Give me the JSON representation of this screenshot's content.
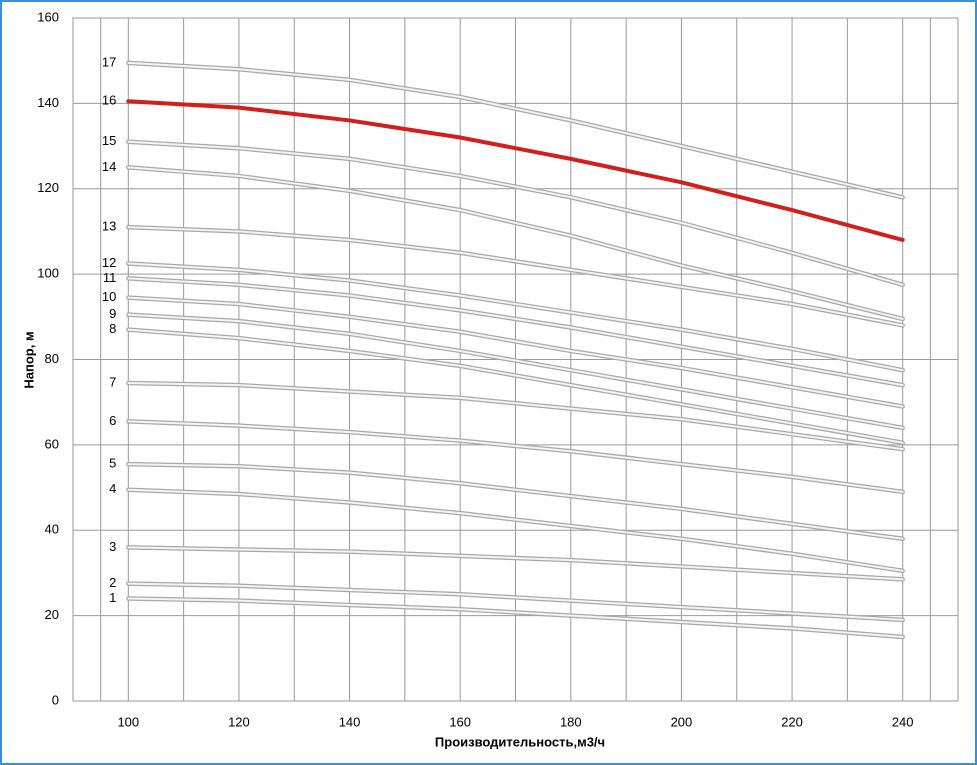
{
  "chart_data": {
    "type": "line",
    "x_label": "Производительность,м3/ч",
    "y_label": "Напор, м",
    "x": [
      100,
      120,
      140,
      160,
      180,
      200,
      220,
      240
    ],
    "xlim": [
      90,
      250
    ],
    "xticks": [
      100,
      120,
      140,
      160,
      180,
      200,
      220,
      240
    ],
    "ylim": [
      0,
      160
    ],
    "yticks": [
      0,
      20,
      40,
      60,
      80,
      100,
      120,
      140,
      160
    ],
    "grid": true,
    "series": [
      {
        "name": "1",
        "color": "#a8a8a8",
        "values": [
          24,
          23.5,
          22.5,
          21.5,
          20,
          18.5,
          17,
          15
        ]
      },
      {
        "name": "2",
        "color": "#a8a8a8",
        "values": [
          27.5,
          27,
          26,
          25,
          23.5,
          22,
          20.5,
          19
        ]
      },
      {
        "name": "3",
        "color": "#a8a8a8",
        "values": [
          36,
          35.5,
          35,
          34,
          33,
          31.5,
          30,
          28.5
        ]
      },
      {
        "name": "4",
        "color": "#a8a8a8",
        "values": [
          49.5,
          48.5,
          46.5,
          44,
          41,
          38,
          34.5,
          30.5
        ]
      },
      {
        "name": "5",
        "color": "#a8a8a8",
        "values": [
          55.5,
          55,
          53.5,
          51,
          48,
          45,
          41.5,
          38
        ]
      },
      {
        "name": "6",
        "color": "#a8a8a8",
        "values": [
          65.5,
          64.5,
          63,
          61,
          58.5,
          55.5,
          52.5,
          49
        ]
      },
      {
        "name": "7",
        "color": "#a8a8a8",
        "values": [
          74.5,
          74,
          72.5,
          71,
          68.5,
          66,
          62.5,
          59
        ]
      },
      {
        "name": "8",
        "color": "#a8a8a8",
        "values": [
          87,
          85,
          82,
          78.5,
          74,
          69.5,
          65,
          60.5
        ]
      },
      {
        "name": "9",
        "color": "#a8a8a8",
        "values": [
          90.5,
          89,
          86,
          82,
          77.5,
          73,
          68.5,
          64
        ]
      },
      {
        "name": "10",
        "color": "#a8a8a8",
        "values": [
          94.5,
          93,
          90,
          86.5,
          82,
          78,
          73.5,
          69
        ]
      },
      {
        "name": "11",
        "color": "#a8a8a8",
        "values": [
          99,
          97.5,
          95,
          91.5,
          87.5,
          83,
          78.5,
          74
        ]
      },
      {
        "name": "12",
        "color": "#a8a8a8",
        "values": [
          102.5,
          101,
          98.5,
          95,
          91,
          87,
          82.5,
          77.5
        ]
      },
      {
        "name": "13",
        "color": "#a8a8a8",
        "values": [
          111,
          110,
          108,
          105,
          101,
          97,
          93,
          88
        ]
      },
      {
        "name": "14",
        "color": "#a8a8a8",
        "values": [
          125,
          123,
          119.5,
          115,
          109,
          102,
          96,
          89.5
        ]
      },
      {
        "name": "15",
        "color": "#a8a8a8",
        "values": [
          131,
          129.5,
          127,
          123,
          118,
          112,
          105,
          97.5
        ]
      },
      {
        "name": "16",
        "color": "#d21f1b",
        "values": [
          140.5,
          139,
          136,
          132,
          127,
          121.5,
          115,
          108
        ]
      },
      {
        "name": "17",
        "color": "#a8a8a8",
        "values": [
          149.5,
          148,
          145.5,
          141.5,
          136,
          130,
          124,
          118
        ]
      }
    ]
  }
}
